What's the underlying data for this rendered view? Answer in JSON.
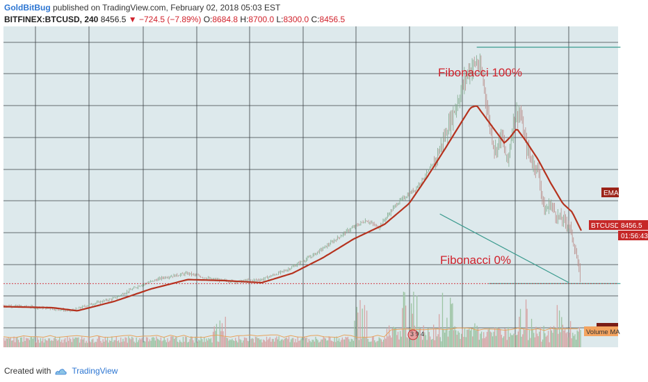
{
  "header": {
    "author": "GoldBitBug",
    "published_text": "published on TradingView.com, February 02, 2018 05:03 EST",
    "symbol": "BITFINEX:BTCUSD, 240",
    "price": "8456.5",
    "change": "▼ −724.5 (−7.89%)",
    "o_label": "O:",
    "o_value": "8684.8",
    "h_label": "H:",
    "h_value": "8700.0",
    "l_label": "L:",
    "l_value": "8300.0",
    "c_label": "C:",
    "c_value": "8456.5"
  },
  "annotations": {
    "fib_top": "Fibonacci 100%",
    "fib_bottom": "Fibonacci 0%"
  },
  "labels": {
    "ema": "EMA",
    "symbol_tag": "BTCUSD",
    "price_tag": "8456.5",
    "countdown": "01:56:43",
    "volume_ma": "Volume MA",
    "indicator_values": "3 9 4"
  },
  "footer": {
    "created_with": "Created with",
    "brand": "TradingView"
  },
  "colors": {
    "plot_bg": "#dde9ec",
    "grid": "#3a3f44",
    "ema": "#b5321e",
    "candle_up": "#7fa98a",
    "candle_down": "#b98a86",
    "volume_up": "#9cc4a3",
    "volume_down": "#d7a5a5",
    "volume_ma": "#e8a25a",
    "fib_line": "#3a9a8e",
    "annotation": "#d0212b",
    "tag_bg": "#c62828"
  },
  "chart_data": {
    "type": "line",
    "symbol": "BITFINEX:BTCUSD",
    "interval": "240",
    "ylim": [
      5400,
      20800
    ],
    "grid": true,
    "price_path": [
      {
        "t": 0.0,
        "price": 7400
      },
      {
        "t": 0.04,
        "price": 7350
      },
      {
        "t": 0.08,
        "price": 7250
      },
      {
        "t": 0.11,
        "price": 7150
      },
      {
        "t": 0.14,
        "price": 7450
      },
      {
        "t": 0.18,
        "price": 7750
      },
      {
        "t": 0.22,
        "price": 8350
      },
      {
        "t": 0.26,
        "price": 8750
      },
      {
        "t": 0.3,
        "price": 8950
      },
      {
        "t": 0.34,
        "price": 8650
      },
      {
        "t": 0.38,
        "price": 8550
      },
      {
        "t": 0.42,
        "price": 8650
      },
      {
        "t": 0.46,
        "price": 9100
      },
      {
        "t": 0.5,
        "price": 9750
      },
      {
        "t": 0.53,
        "price": 10350
      },
      {
        "t": 0.56,
        "price": 11000
      },
      {
        "t": 0.59,
        "price": 11500
      },
      {
        "t": 0.61,
        "price": 11150
      },
      {
        "t": 0.64,
        "price": 12300
      },
      {
        "t": 0.67,
        "price": 13000
      },
      {
        "t": 0.7,
        "price": 14200
      },
      {
        "t": 0.72,
        "price": 15700
      },
      {
        "t": 0.74,
        "price": 17300
      },
      {
        "t": 0.755,
        "price": 18600
      },
      {
        "t": 0.77,
        "price": 19100
      },
      {
        "t": 0.78,
        "price": 18300
      },
      {
        "t": 0.79,
        "price": 16200
      },
      {
        "t": 0.8,
        "price": 14800
      },
      {
        "t": 0.81,
        "price": 15600
      },
      {
        "t": 0.82,
        "price": 14200
      },
      {
        "t": 0.83,
        "price": 16400
      },
      {
        "t": 0.84,
        "price": 16700
      },
      {
        "t": 0.85,
        "price": 15100
      },
      {
        "t": 0.86,
        "price": 14300
      },
      {
        "t": 0.87,
        "price": 13900
      },
      {
        "t": 0.88,
        "price": 11900
      },
      {
        "t": 0.89,
        "price": 12300
      },
      {
        "t": 0.9,
        "price": 11700
      },
      {
        "t": 0.91,
        "price": 11500
      },
      {
        "t": 0.92,
        "price": 11300
      },
      {
        "t": 0.93,
        "price": 10100
      },
      {
        "t": 0.94,
        "price": 8456
      }
    ],
    "ema_path": [
      {
        "t": 0.0,
        "price": 7350
      },
      {
        "t": 0.08,
        "price": 7300
      },
      {
        "t": 0.12,
        "price": 7150
      },
      {
        "t": 0.18,
        "price": 7600
      },
      {
        "t": 0.24,
        "price": 8200
      },
      {
        "t": 0.3,
        "price": 8650
      },
      {
        "t": 0.36,
        "price": 8600
      },
      {
        "t": 0.42,
        "price": 8500
      },
      {
        "t": 0.47,
        "price": 8950
      },
      {
        "t": 0.52,
        "price": 9700
      },
      {
        "t": 0.57,
        "price": 10600
      },
      {
        "t": 0.62,
        "price": 11300
      },
      {
        "t": 0.66,
        "price": 12300
      },
      {
        "t": 0.69,
        "price": 13600
      },
      {
        "t": 0.72,
        "price": 15000
      },
      {
        "t": 0.745,
        "price": 16200
      },
      {
        "t": 0.76,
        "price": 16900
      },
      {
        "t": 0.77,
        "price": 17000
      },
      {
        "t": 0.78,
        "price": 16600
      },
      {
        "t": 0.8,
        "price": 15800
      },
      {
        "t": 0.815,
        "price": 15200
      },
      {
        "t": 0.825,
        "price": 15500
      },
      {
        "t": 0.835,
        "price": 15900
      },
      {
        "t": 0.85,
        "price": 15300
      },
      {
        "t": 0.87,
        "price": 14400
      },
      {
        "t": 0.89,
        "price": 13300
      },
      {
        "t": 0.91,
        "price": 12300
      },
      {
        "t": 0.925,
        "price": 11900
      },
      {
        "t": 0.94,
        "price": 11000
      }
    ],
    "fibonacci": {
      "level_100": 19800,
      "level_0": 8456
    },
    "trendline": {
      "from": {
        "t": 0.71,
        "price": 11800
      },
      "to": {
        "t": 0.92,
        "price": 8500
      }
    },
    "volume_peaks": [
      {
        "t": 0.35,
        "level": 0.55
      },
      {
        "t": 0.58,
        "level": 0.9
      },
      {
        "t": 0.66,
        "level": 1.0
      },
      {
        "t": 0.72,
        "level": 0.85
      },
      {
        "t": 0.85,
        "level": 0.8
      },
      {
        "t": 0.91,
        "level": 0.6
      }
    ]
  }
}
